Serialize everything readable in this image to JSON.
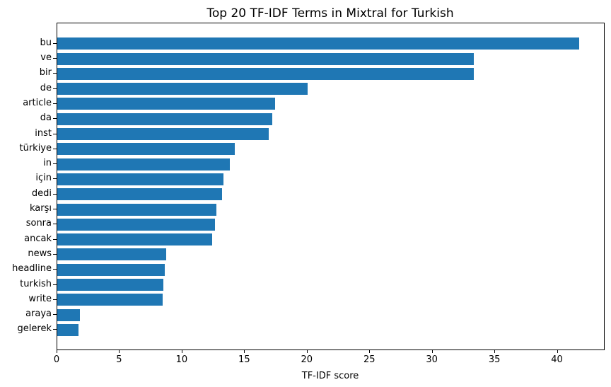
{
  "chart_data": {
    "type": "bar",
    "orientation": "horizontal",
    "title": "Top 20 TF-IDF Terms in Mixtral for Turkish",
    "xlabel": "TF-IDF score",
    "ylabel": "",
    "categories": [
      "bu",
      "ve",
      "bir",
      "de",
      "article",
      "da",
      "inst",
      "türkiye",
      "in",
      "için",
      "dedi",
      "karşı",
      "sonra",
      "ancak",
      "news",
      "headline",
      "turkish",
      "write",
      "araya",
      "gelerek"
    ],
    "values": [
      41.7,
      33.3,
      33.3,
      20.0,
      17.4,
      17.2,
      16.9,
      14.2,
      13.8,
      13.3,
      13.2,
      12.7,
      12.6,
      12.4,
      8.7,
      8.6,
      8.5,
      8.4,
      1.8,
      1.7
    ],
    "xlim": [
      0,
      43.7
    ],
    "xticks": [
      0,
      5,
      10,
      15,
      20,
      25,
      30,
      35,
      40
    ],
    "bar_color": "#1f77b4",
    "text_color": "#000000",
    "grid": false,
    "legend": null
  }
}
